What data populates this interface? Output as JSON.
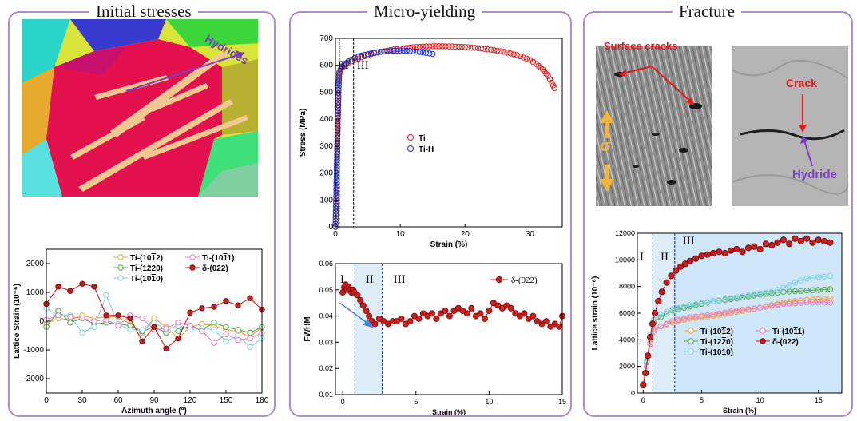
{
  "panels": {
    "initial": {
      "title": "Initial stresses"
    },
    "micro": {
      "title": "Micro-yielding"
    },
    "fracture": {
      "title": "Fracture"
    }
  },
  "images": {
    "ebsd": {
      "label": "Hydrides"
    },
    "sem": {
      "label": "Surface cracks",
      "sigma": "σ"
    },
    "closeup": {
      "crack": "Crack",
      "hydride": "Hydride"
    }
  },
  "colors": {
    "orange": "#f5a03c",
    "green": "#4fa84a",
    "cyan": "#7fd0e8",
    "pink": "#e77ec4",
    "red": "#c81e1e",
    "blue": "#1e2ed0",
    "purple": "#7b3fbf",
    "panel_border": "#b48ad0",
    "shade_light": "#ddeefa",
    "shade_dark": "#a9d4f2"
  },
  "chart_data": [
    {
      "id": "azimuth",
      "type": "line",
      "xlabel": "Azimuth angle (°)",
      "ylabel": "Lattice Strain (10⁻⁶)",
      "xlim": [
        0,
        180
      ],
      "ylim": [
        -2500,
        2500
      ],
      "xticks": [
        0,
        30,
        60,
        90,
        120,
        150,
        180
      ],
      "yticks": [
        -2000,
        -1000,
        0,
        1000,
        2000
      ],
      "x": [
        0,
        10,
        20,
        30,
        40,
        50,
        60,
        70,
        80,
        90,
        100,
        110,
        120,
        130,
        140,
        150,
        160,
        170,
        180
      ],
      "series": [
        {
          "name": "Ti-(10<tspan text-decoration='overline'>1</tspan>2)",
          "legend": "Ti-(10 1 2)",
          "color": "#f5a03c",
          "values": [
            -100,
            100,
            50,
            200,
            100,
            150,
            150,
            -100,
            -400,
            100,
            -200,
            -600,
            -200,
            -100,
            -150,
            -300,
            -350,
            -550,
            -200
          ]
        },
        {
          "name": "Ti-(12 2 0)",
          "legend": "Ti-(12 2 0)",
          "color": "#4fa84a",
          "values": [
            -200,
            350,
            -50,
            100,
            -100,
            -50,
            -100,
            -150,
            -350,
            -200,
            -400,
            -350,
            -150,
            -300,
            -50,
            -200,
            -300,
            -400,
            -200
          ]
        },
        {
          "name": "Ti-(10 1 0)",
          "legend": "Ti-(10 1 0)",
          "color": "#7fd0e8",
          "values": [
            450,
            200,
            200,
            -400,
            -200,
            900,
            -100,
            -300,
            -300,
            -50,
            -300,
            -150,
            -300,
            -250,
            -300,
            -700,
            -500,
            -900,
            -600
          ]
        },
        {
          "name": "Ti-(10 1 1)",
          "legend": "Ti-(10 1 1)",
          "color": "#e77ec4",
          "values": [
            50,
            200,
            150,
            100,
            0,
            50,
            -150,
            200,
            100,
            -300,
            -250,
            -50,
            -150,
            -350,
            -750,
            -450,
            -650,
            -600,
            -400
          ]
        },
        {
          "name": "δ-(022)",
          "legend": "δ-(022)",
          "color": "#c81e1e",
          "values": [
            600,
            1200,
            1050,
            1300,
            1200,
            200,
            200,
            100,
            -700,
            -200,
            -950,
            -600,
            300,
            450,
            500,
            700,
            550,
            800,
            400
          ]
        }
      ]
    },
    {
      "id": "stress_strain",
      "type": "scatter",
      "xlabel": "Strain (%)",
      "ylabel": "Stress (MPa)",
      "xlim": [
        0,
        35
      ],
      "ylim": [
        0,
        700
      ],
      "xticks": [
        0,
        10,
        20,
        30
      ],
      "yticks": [
        0,
        100,
        200,
        300,
        400,
        500,
        600,
        700
      ],
      "regions": [
        "I",
        "II",
        "III"
      ],
      "region_bounds": [
        0.6,
        2.8
      ],
      "series": [
        {
          "name": "Ti",
          "color": "#e31a1c",
          "points": [
            [
              0,
              0
            ],
            [
              0.1,
              80
            ],
            [
              0.2,
              200
            ],
            [
              0.3,
              320
            ],
            [
              0.4,
              430
            ],
            [
              0.5,
              520
            ],
            [
              0.6,
              570
            ],
            [
              1,
              590
            ],
            [
              2,
              610
            ],
            [
              4,
              630
            ],
            [
              6,
              645
            ],
            [
              8,
              655
            ],
            [
              10,
              662
            ],
            [
              12,
              667
            ],
            [
              14,
              670
            ],
            [
              16,
              671
            ],
            [
              18,
              670
            ],
            [
              20,
              668
            ],
            [
              22,
              664
            ],
            [
              24,
              658
            ],
            [
              26,
              650
            ],
            [
              28,
              638
            ],
            [
              30,
              620
            ],
            [
              31,
              605
            ],
            [
              32,
              585
            ],
            [
              32.8,
              560
            ],
            [
              33.4,
              535
            ],
            [
              33.8,
              515
            ]
          ]
        },
        {
          "name": "Ti-H",
          "color": "#1f33c8",
          "points": [
            [
              0,
              0
            ],
            [
              0.1,
              90
            ],
            [
              0.2,
              210
            ],
            [
              0.3,
              330
            ],
            [
              0.4,
              440
            ],
            [
              0.5,
              530
            ],
            [
              0.6,
              575
            ],
            [
              1,
              595
            ],
            [
              2,
              615
            ],
            [
              3,
              628
            ],
            [
              4,
              636
            ],
            [
              5,
              642
            ],
            [
              6,
              647
            ],
            [
              7,
              650
            ],
            [
              8,
              652
            ],
            [
              9,
              654
            ],
            [
              10,
              655
            ],
            [
              11,
              654
            ],
            [
              12,
              652
            ],
            [
              13,
              649
            ],
            [
              14,
              646
            ],
            [
              15,
              642
            ]
          ]
        }
      ]
    },
    {
      "id": "fwhm",
      "type": "line",
      "xlabel": "Strain (%)",
      "ylabel": "FWHM",
      "xlim": [
        -0.5,
        15
      ],
      "ylim": [
        0.01,
        0.06
      ],
      "xticks": [
        0,
        5,
        10,
        15
      ],
      "yticks": [
        0.01,
        0.02,
        0.03,
        0.04,
        0.05,
        0.06
      ],
      "regions": [
        "I",
        "II",
        "III"
      ],
      "region_bounds": [
        0.8,
        2.7
      ],
      "series": [
        {
          "name": "δ-(022)",
          "color": "#c81e1e",
          "points": [
            [
              0,
              0.049
            ],
            [
              0.1,
              0.051
            ],
            [
              0.2,
              0.052
            ],
            [
              0.3,
              0.05
            ],
            [
              0.4,
              0.051
            ],
            [
              0.5,
              0.05
            ],
            [
              0.6,
              0.049
            ],
            [
              0.7,
              0.05
            ],
            [
              0.8,
              0.049
            ],
            [
              1.0,
              0.048
            ],
            [
              1.2,
              0.046
            ],
            [
              1.4,
              0.044
            ],
            [
              1.6,
              0.042
            ],
            [
              1.8,
              0.04
            ],
            [
              2.0,
              0.038
            ],
            [
              2.2,
              0.037
            ],
            [
              2.5,
              0.039
            ],
            [
              2.8,
              0.038
            ],
            [
              3.1,
              0.037
            ],
            [
              3.4,
              0.038
            ],
            [
              3.7,
              0.038
            ],
            [
              4.0,
              0.039
            ],
            [
              4.3,
              0.037
            ],
            [
              4.6,
              0.038
            ],
            [
              4.9,
              0.04
            ],
            [
              5.2,
              0.039
            ],
            [
              5.5,
              0.041
            ],
            [
              5.8,
              0.04
            ],
            [
              6.1,
              0.041
            ],
            [
              6.4,
              0.039
            ],
            [
              6.7,
              0.041
            ],
            [
              7.0,
              0.042
            ],
            [
              7.3,
              0.04
            ],
            [
              7.6,
              0.042
            ],
            [
              7.9,
              0.043
            ],
            [
              8.2,
              0.042
            ],
            [
              8.5,
              0.041
            ],
            [
              8.8,
              0.043
            ],
            [
              9.1,
              0.04
            ],
            [
              9.4,
              0.041
            ],
            [
              9.7,
              0.039
            ],
            [
              10.0,
              0.042
            ],
            [
              10.3,
              0.045
            ],
            [
              10.6,
              0.044
            ],
            [
              10.9,
              0.043
            ],
            [
              11.2,
              0.044
            ],
            [
              11.5,
              0.043
            ],
            [
              11.8,
              0.041
            ],
            [
              12.1,
              0.04
            ],
            [
              12.4,
              0.041
            ],
            [
              12.7,
              0.039
            ],
            [
              13.0,
              0.04
            ],
            [
              13.3,
              0.038
            ],
            [
              13.6,
              0.037
            ],
            [
              13.9,
              0.038
            ],
            [
              14.2,
              0.036
            ],
            [
              14.5,
              0.037
            ],
            [
              14.8,
              0.036
            ],
            [
              15.0,
              0.04
            ]
          ]
        }
      ]
    },
    {
      "id": "lattice_strain",
      "type": "line",
      "xlabel": "Strain (%)",
      "ylabel": "Lattice strain (10⁻⁶)",
      "xlim": [
        -0.5,
        17
      ],
      "ylim": [
        0,
        12000
      ],
      "xticks": [
        0,
        5,
        10,
        15
      ],
      "yticks": [
        0,
        2000,
        4000,
        6000,
        8000,
        10000,
        12000
      ],
      "regions": [
        "I",
        "II",
        "III"
      ],
      "region_bounds": [
        0.8,
        2.7
      ],
      "series": [
        {
          "name": "Ti-(10 1 2)",
          "color": "#f5a03c",
          "points": [
            [
              0,
              600
            ],
            [
              0.3,
              2000
            ],
            [
              0.6,
              3800
            ],
            [
              0.9,
              4800
            ],
            [
              1.5,
              5000
            ],
            [
              2.5,
              5300
            ],
            [
              4,
              5600
            ],
            [
              6,
              5800
            ],
            [
              8,
              6100
            ],
            [
              10,
              6400
            ],
            [
              12,
              6800
            ],
            [
              14,
              7000
            ],
            [
              16,
              7100
            ]
          ]
        },
        {
          "name": "Ti-(12 2 0)",
          "color": "#4fa84a",
          "points": [
            [
              0,
              700
            ],
            [
              0.3,
              2300
            ],
            [
              0.6,
              4200
            ],
            [
              0.9,
              5300
            ],
            [
              1.5,
              5700
            ],
            [
              2.5,
              6200
            ],
            [
              4,
              6500
            ],
            [
              6,
              6900
            ],
            [
              8,
              7100
            ],
            [
              10,
              7400
            ],
            [
              12,
              7600
            ],
            [
              14,
              7700
            ],
            [
              16,
              7800
            ]
          ]
        },
        {
          "name": "Ti-(10 1 0)",
          "color": "#7fd0e8",
          "points": [
            [
              0,
              700
            ],
            [
              0.3,
              2400
            ],
            [
              0.6,
              4400
            ],
            [
              0.9,
              5500
            ],
            [
              1.5,
              5900
            ],
            [
              2.5,
              6300
            ],
            [
              4,
              6600
            ],
            [
              6,
              6900
            ],
            [
              8,
              7200
            ],
            [
              10,
              7500
            ],
            [
              11,
              7600
            ],
            [
              12,
              7900
            ],
            [
              13,
              8300
            ],
            [
              14,
              8600
            ],
            [
              15,
              8700
            ],
            [
              16,
              8800
            ]
          ]
        },
        {
          "name": "Ti-(10 1 1)",
          "color": "#e77ec4",
          "points": [
            [
              0,
              600
            ],
            [
              0.3,
              2000
            ],
            [
              0.6,
              3700
            ],
            [
              0.9,
              4600
            ],
            [
              1.5,
              5000
            ],
            [
              2.5,
              5400
            ],
            [
              4,
              5700
            ],
            [
              6,
              5900
            ],
            [
              8,
              6200
            ],
            [
              10,
              6400
            ],
            [
              12,
              6700
            ],
            [
              14,
              6800
            ],
            [
              16,
              6800
            ]
          ]
        },
        {
          "name": "δ-(022)",
          "color": "#c81e1e",
          "points": [
            [
              0,
              600
            ],
            [
              0.2,
              1500
            ],
            [
              0.4,
              2800
            ],
            [
              0.6,
              4200
            ],
            [
              0.8,
              5200
            ],
            [
              1.0,
              6000
            ],
            [
              1.3,
              6900
            ],
            [
              1.6,
              7600
            ],
            [
              2.0,
              8300
            ],
            [
              2.4,
              8800
            ],
            [
              2.8,
              9200
            ],
            [
              3.2,
              9500
            ],
            [
              3.6,
              9700
            ],
            [
              4.0,
              9900
            ],
            [
              4.5,
              10100
            ],
            [
              5.0,
              10300
            ],
            [
              5.5,
              10400
            ],
            [
              6.0,
              10500
            ],
            [
              6.5,
              10600
            ],
            [
              7.0,
              10500
            ],
            [
              7.5,
              10700
            ],
            [
              8.0,
              10800
            ],
            [
              8.5,
              10600
            ],
            [
              9.0,
              10900
            ],
            [
              9.5,
              11000
            ],
            [
              10.0,
              10800
            ],
            [
              10.5,
              11200
            ],
            [
              11.0,
              11100
            ],
            [
              11.5,
              11300
            ],
            [
              12.0,
              11500
            ],
            [
              12.5,
              11200
            ],
            [
              13.0,
              11600
            ],
            [
              13.5,
              11400
            ],
            [
              14.0,
              11600
            ],
            [
              14.5,
              11300
            ],
            [
              15.0,
              11500
            ],
            [
              15.5,
              11400
            ],
            [
              16.0,
              11300
            ]
          ]
        }
      ]
    }
  ]
}
